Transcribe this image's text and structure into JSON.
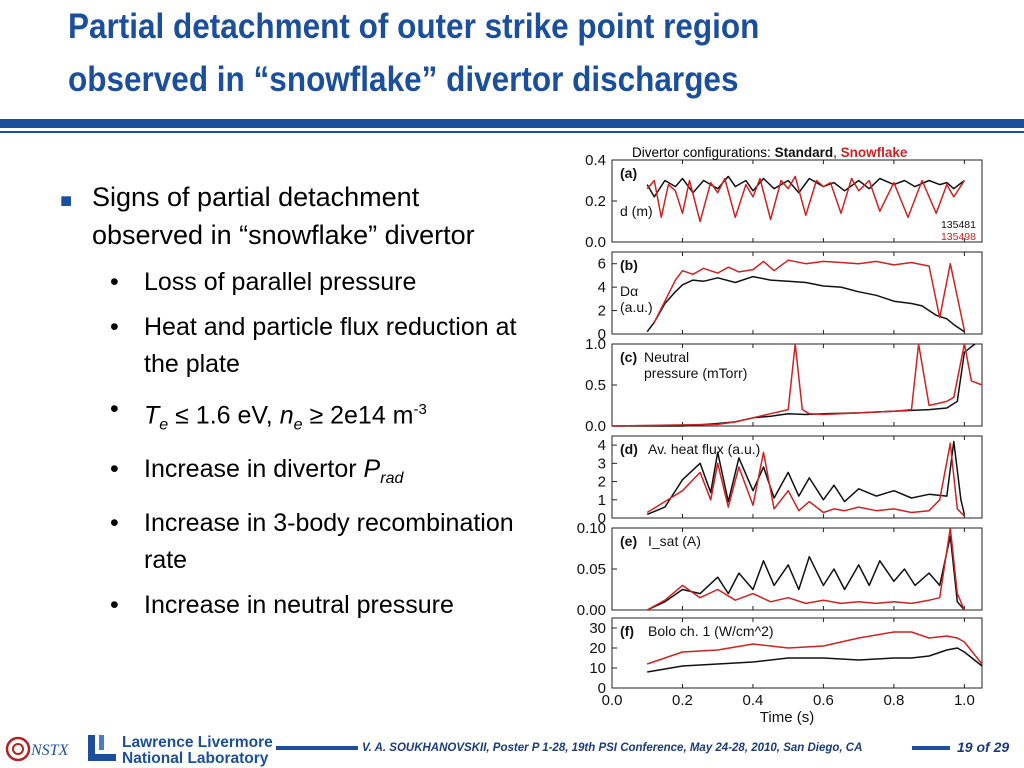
{
  "slide": {
    "title_line1": "Partial detachment of outer strike point region",
    "title_line2": "observed in “snowflake” divertor discharges",
    "bullet_main": "Signs of partial detachment observed in “snowflake” divertor",
    "sub_bullets": {
      "b1": "Loss of parallel pressure",
      "b2": "Heat and particle flux reduction at the plate",
      "b3_Te": "T",
      "b3_e1": "e",
      "b3_mid": " ≤ 1.6 eV, ",
      "b3_ne": "n",
      "b3_e2": "e",
      "b3_tail": " ≥ 2e14 m",
      "b3_exp": "-3",
      "b4": "Increase in divertor ",
      "b4_P": "P",
      "b4_sub": "rad",
      "b5": "Increase in 3-body recombination rate",
      "b6": "Increase in neutral pressure"
    },
    "footer_text": "V. A. SOUKHANOVSKII, Poster P 1-28, 19th PSI Conference, May 24-28, 2010, San Diego, CA",
    "page_label": "19 of 29",
    "logo_nstx": "NSTX",
    "logo_llnl_line1": "Lawrence Livermore",
    "logo_llnl_line2": "National Laboratory"
  },
  "colors": {
    "accent": "#1b4f9c",
    "standard": "#111111",
    "snowflake": "#cc2222"
  },
  "chart_data": {
    "type": "line",
    "title_prefix": "Divertor configurations: ",
    "title_standard": "Standard",
    "title_sep": ", ",
    "title_snowflake": "Snowflake",
    "xlabel": "Time (s)",
    "xlim": [
      0.0,
      1.05
    ],
    "xticks": [
      "0.0",
      "0.2",
      "0.4",
      "0.6",
      "0.8",
      "1.0"
    ],
    "legend": {
      "standard_shot": "135481",
      "snowflake_shot": "135498"
    },
    "panels": [
      {
        "id": "a",
        "tag": "(a)",
        "label": "d (m)",
        "ylim": [
          0.0,
          0.4
        ],
        "yticks": [
          {
            "v": 0.0,
            "t": "0.0"
          },
          {
            "v": 0.2,
            "t": "0.2"
          },
          {
            "v": 0.4,
            "t": "0.4"
          }
        ],
        "series": [
          {
            "name": "Standard",
            "color": "#111111",
            "x": [
              0.1,
              0.12,
              0.15,
              0.18,
              0.2,
              0.23,
              0.26,
              0.3,
              0.33,
              0.35,
              0.38,
              0.4,
              0.43,
              0.46,
              0.5,
              0.53,
              0.56,
              0.6,
              0.63,
              0.66,
              0.7,
              0.73,
              0.76,
              0.8,
              0.83,
              0.86,
              0.9,
              0.93,
              0.95,
              0.97,
              1.0
            ],
            "y": [
              0.28,
              0.22,
              0.3,
              0.27,
              0.31,
              0.24,
              0.3,
              0.26,
              0.32,
              0.27,
              0.3,
              0.25,
              0.31,
              0.26,
              0.3,
              0.24,
              0.31,
              0.27,
              0.29,
              0.25,
              0.3,
              0.26,
              0.31,
              0.28,
              0.3,
              0.27,
              0.3,
              0.28,
              0.29,
              0.26,
              0.3
            ]
          },
          {
            "name": "Snowflake",
            "color": "#cc2222",
            "x": [
              0.1,
              0.12,
              0.14,
              0.16,
              0.18,
              0.2,
              0.22,
              0.25,
              0.28,
              0.3,
              0.32,
              0.35,
              0.38,
              0.4,
              0.42,
              0.45,
              0.48,
              0.5,
              0.52,
              0.55,
              0.58,
              0.6,
              0.62,
              0.65,
              0.68,
              0.7,
              0.73,
              0.76,
              0.8,
              0.84,
              0.88,
              0.92,
              0.95,
              0.97,
              1.0
            ],
            "y": [
              0.26,
              0.3,
              0.12,
              0.28,
              0.25,
              0.14,
              0.3,
              0.1,
              0.29,
              0.24,
              0.31,
              0.12,
              0.28,
              0.22,
              0.31,
              0.11,
              0.3,
              0.26,
              0.32,
              0.13,
              0.3,
              0.27,
              0.29,
              0.14,
              0.31,
              0.25,
              0.3,
              0.15,
              0.29,
              0.12,
              0.3,
              0.14,
              0.28,
              0.22,
              0.3
            ]
          }
        ]
      },
      {
        "id": "b",
        "tag": "(b)",
        "label_main": "D",
        "label_sym": "α",
        "label_unit": "(a.u.)",
        "ylim": [
          0,
          7
        ],
        "yticks": [
          {
            "v": 0,
            "t": "0"
          },
          {
            "v": 2,
            "t": "2"
          },
          {
            "v": 4,
            "t": "4"
          },
          {
            "v": 6,
            "t": "6"
          }
        ],
        "series": [
          {
            "name": "Standard",
            "color": "#111111",
            "x": [
              0.1,
              0.12,
              0.15,
              0.18,
              0.2,
              0.23,
              0.26,
              0.3,
              0.35,
              0.4,
              0.45,
              0.5,
              0.55,
              0.6,
              0.65,
              0.7,
              0.75,
              0.8,
              0.85,
              0.88,
              0.9,
              0.92,
              0.95,
              0.97,
              1.0
            ],
            "y": [
              0.2,
              1.0,
              2.6,
              3.6,
              4.2,
              4.6,
              4.5,
              4.8,
              4.4,
              4.9,
              4.6,
              4.5,
              4.4,
              4.1,
              4.0,
              3.6,
              3.3,
              2.8,
              2.6,
              2.4,
              2.0,
              1.6,
              1.3,
              0.8,
              0.2
            ]
          },
          {
            "name": "Snowflake",
            "color": "#cc2222",
            "x": [
              0.12,
              0.15,
              0.18,
              0.2,
              0.23,
              0.26,
              0.3,
              0.33,
              0.36,
              0.4,
              0.43,
              0.46,
              0.5,
              0.55,
              0.6,
              0.65,
              0.7,
              0.75,
              0.8,
              0.85,
              0.9,
              0.93,
              0.96,
              1.0
            ],
            "y": [
              1.0,
              2.8,
              4.6,
              5.4,
              5.1,
              5.6,
              5.2,
              5.7,
              5.3,
              5.5,
              6.2,
              5.4,
              6.3,
              6.0,
              6.2,
              6.1,
              6.0,
              6.2,
              5.9,
              6.1,
              5.8,
              1.4,
              6.0,
              0.3
            ]
          }
        ]
      },
      {
        "id": "c",
        "tag": "(c)",
        "label_l1": "Neutral",
        "label_l2": "pressure (mTorr)",
        "ylim": [
          0.0,
          1.0
        ],
        "yticks": [
          {
            "v": 0.0,
            "t": "0.0"
          },
          {
            "v": 0.5,
            "t": "0.5"
          },
          {
            "v": 1.0,
            "t": "1.0"
          }
        ],
        "series": [
          {
            "name": "Standard",
            "color": "#111111",
            "x": [
              0.0,
              0.2,
              0.3,
              0.35,
              0.4,
              0.45,
              0.5,
              0.55,
              0.6,
              0.7,
              0.8,
              0.85,
              0.9,
              0.95,
              0.98,
              1.0,
              1.03
            ],
            "y": [
              0.0,
              0.0,
              0.03,
              0.05,
              0.1,
              0.12,
              0.15,
              0.14,
              0.15,
              0.16,
              0.18,
              0.19,
              0.2,
              0.22,
              0.3,
              0.9,
              1.0
            ]
          },
          {
            "name": "Snowflake",
            "color": "#cc2222",
            "x": [
              0.0,
              0.3,
              0.35,
              0.4,
              0.45,
              0.5,
              0.52,
              0.54,
              0.56,
              0.6,
              0.7,
              0.8,
              0.85,
              0.87,
              0.9,
              0.95,
              0.97,
              1.0,
              1.02,
              1.05
            ],
            "y": [
              0.0,
              0.02,
              0.05,
              0.1,
              0.15,
              0.2,
              1.0,
              0.2,
              0.15,
              0.14,
              0.16,
              0.18,
              0.2,
              1.0,
              0.25,
              0.3,
              0.35,
              1.0,
              0.55,
              0.5
            ]
          }
        ]
      },
      {
        "id": "d",
        "tag": "(d)",
        "label": "Av. heat flux (a.u.)",
        "ylim": [
          0,
          4.5
        ],
        "yticks": [
          {
            "v": 0,
            "t": "0"
          },
          {
            "v": 1,
            "t": "1"
          },
          {
            "v": 2,
            "t": "2"
          },
          {
            "v": 3,
            "t": "3"
          },
          {
            "v": 4,
            "t": "4"
          }
        ],
        "series": [
          {
            "name": "Standard",
            "color": "#111111",
            "x": [
              0.1,
              0.15,
              0.2,
              0.25,
              0.28,
              0.3,
              0.33,
              0.36,
              0.4,
              0.43,
              0.46,
              0.5,
              0.53,
              0.56,
              0.6,
              0.63,
              0.66,
              0.7,
              0.75,
              0.8,
              0.85,
              0.9,
              0.95,
              0.97,
              0.99,
              1.0
            ],
            "y": [
              0.2,
              0.6,
              2.1,
              3.0,
              1.4,
              3.6,
              0.9,
              3.3,
              1.5,
              2.8,
              1.1,
              2.5,
              1.2,
              2.2,
              1.0,
              1.8,
              0.9,
              1.6,
              1.2,
              1.5,
              1.1,
              1.3,
              1.2,
              4.2,
              1.0,
              0.2
            ]
          },
          {
            "name": "Snowflake",
            "color": "#cc2222",
            "x": [
              0.1,
              0.15,
              0.2,
              0.25,
              0.28,
              0.3,
              0.33,
              0.36,
              0.4,
              0.43,
              0.46,
              0.5,
              0.53,
              0.56,
              0.6,
              0.63,
              0.66,
              0.7,
              0.75,
              0.8,
              0.85,
              0.9,
              0.93,
              0.96,
              0.98,
              1.0
            ],
            "y": [
              0.3,
              0.9,
              1.5,
              2.5,
              1.0,
              3.0,
              0.6,
              2.8,
              0.7,
              3.6,
              0.5,
              1.5,
              0.4,
              0.9,
              0.3,
              0.5,
              0.4,
              0.6,
              0.4,
              0.5,
              0.3,
              0.4,
              1.0,
              4.1,
              0.5,
              0.1
            ]
          }
        ]
      },
      {
        "id": "e",
        "tag": "(e)",
        "label": "I_sat (A)",
        "ylim": [
          0.0,
          0.1
        ],
        "yticks": [
          {
            "v": 0.0,
            "t": "0.00"
          },
          {
            "v": 0.05,
            "t": "0.05"
          },
          {
            "v": 0.1,
            "t": "0.10"
          }
        ],
        "series": [
          {
            "name": "Standard",
            "color": "#111111",
            "x": [
              0.1,
              0.15,
              0.2,
              0.25,
              0.3,
              0.33,
              0.36,
              0.4,
              0.43,
              0.46,
              0.5,
              0.53,
              0.56,
              0.6,
              0.63,
              0.66,
              0.7,
              0.73,
              0.76,
              0.8,
              0.83,
              0.86,
              0.9,
              0.93,
              0.96,
              0.98,
              1.0
            ],
            "y": [
              0.0,
              0.01,
              0.025,
              0.02,
              0.04,
              0.02,
              0.045,
              0.025,
              0.06,
              0.03,
              0.055,
              0.025,
              0.065,
              0.03,
              0.05,
              0.025,
              0.055,
              0.03,
              0.06,
              0.035,
              0.05,
              0.03,
              0.045,
              0.03,
              0.09,
              0.01,
              0.0
            ]
          },
          {
            "name": "Snowflake",
            "color": "#cc2222",
            "x": [
              0.1,
              0.15,
              0.2,
              0.25,
              0.3,
              0.35,
              0.4,
              0.45,
              0.5,
              0.55,
              0.6,
              0.65,
              0.7,
              0.75,
              0.8,
              0.85,
              0.9,
              0.93,
              0.96,
              0.98,
              1.0
            ],
            "y": [
              0.0,
              0.012,
              0.03,
              0.015,
              0.025,
              0.012,
              0.02,
              0.01,
              0.015,
              0.008,
              0.012,
              0.008,
              0.01,
              0.008,
              0.01,
              0.008,
              0.012,
              0.015,
              0.1,
              0.02,
              0.0
            ]
          }
        ]
      },
      {
        "id": "f",
        "tag": "(f)",
        "label": "Bolo ch. 1 (W/cm^2)",
        "ylim": [
          0,
          35
        ],
        "yticks": [
          {
            "v": 0,
            "t": "0"
          },
          {
            "v": 10,
            "t": "10"
          },
          {
            "v": 20,
            "t": "20"
          },
          {
            "v": 30,
            "t": "30"
          }
        ],
        "series": [
          {
            "name": "Standard",
            "color": "#111111",
            "x": [
              0.1,
              0.2,
              0.3,
              0.4,
              0.5,
              0.6,
              0.7,
              0.8,
              0.85,
              0.9,
              0.95,
              0.98,
              1.0,
              1.05
            ],
            "y": [
              8,
              11,
              12,
              13,
              15,
              15,
              14,
              15,
              15,
              16,
              19,
              20,
              18,
              11
            ]
          },
          {
            "name": "Snowflake",
            "color": "#cc2222",
            "x": [
              0.1,
              0.2,
              0.3,
              0.4,
              0.5,
              0.6,
              0.7,
              0.8,
              0.85,
              0.9,
              0.95,
              0.98,
              1.0,
              1.05
            ],
            "y": [
              12,
              18,
              19,
              22,
              20,
              21,
              25,
              28,
              28,
              25,
              26,
              25,
              23,
              12
            ]
          }
        ]
      }
    ]
  }
}
